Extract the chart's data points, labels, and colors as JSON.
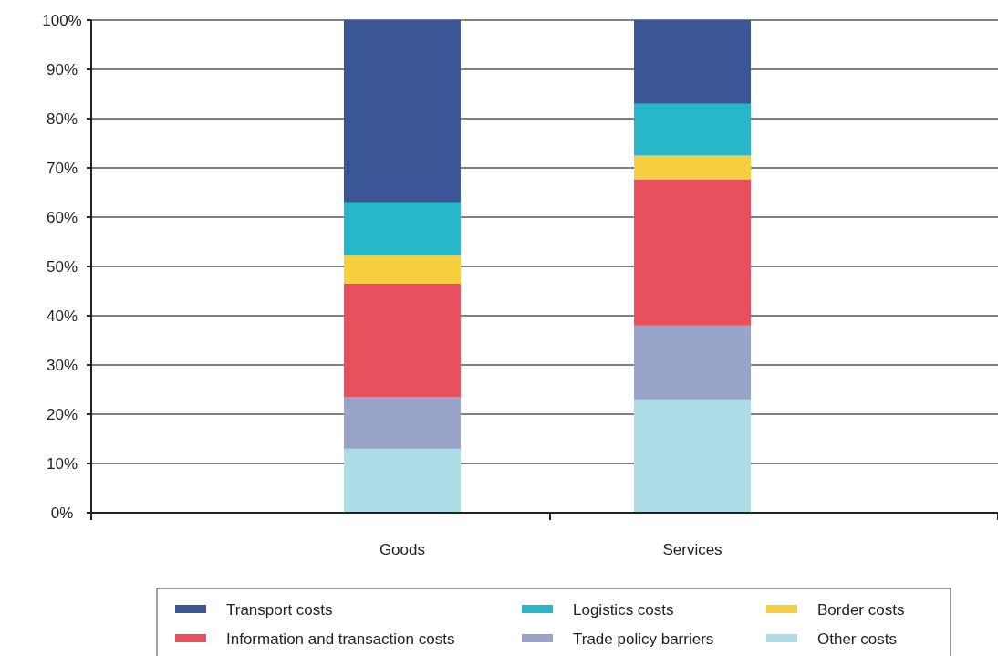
{
  "chart_data": {
    "type": "bar",
    "stacked": true,
    "categories": [
      "Goods",
      "Services"
    ],
    "series": [
      {
        "name": "Other costs",
        "color": "#aedce6",
        "values": [
          13,
          23
        ]
      },
      {
        "name": "Trade policy barriers",
        "color": "#9aa3c9",
        "values": [
          10.5,
          15
        ]
      },
      {
        "name": "Information and transaction costs",
        "color": "#e8505e",
        "values": [
          23,
          29.7
        ]
      },
      {
        "name": "Border costs",
        "color": "#f5cf3e",
        "values": [
          5.7,
          4.8
        ]
      },
      {
        "name": "Logistics costs",
        "color": "#27b7cb",
        "values": [
          10.8,
          10.5
        ]
      },
      {
        "name": "Transport costs",
        "color": "#3b5697",
        "values": [
          37,
          17
        ]
      }
    ],
    "ylim": [
      0,
      100
    ],
    "yticks": [
      {
        "value": 0,
        "label": "0%"
      },
      {
        "value": 10,
        "label": "10%"
      },
      {
        "value": 20,
        "label": "20%"
      },
      {
        "value": 30,
        "label": "30%"
      },
      {
        "value": 40,
        "label": "40%"
      },
      {
        "value": 50,
        "label": "50%"
      },
      {
        "value": 60,
        "label": "60%"
      },
      {
        "value": 70,
        "label": "70%"
      },
      {
        "value": 80,
        "label": "80%"
      },
      {
        "value": 90,
        "label": "90%"
      },
      {
        "value": 100,
        "label": "100%"
      }
    ],
    "grid": "y",
    "legend": "bottom"
  }
}
